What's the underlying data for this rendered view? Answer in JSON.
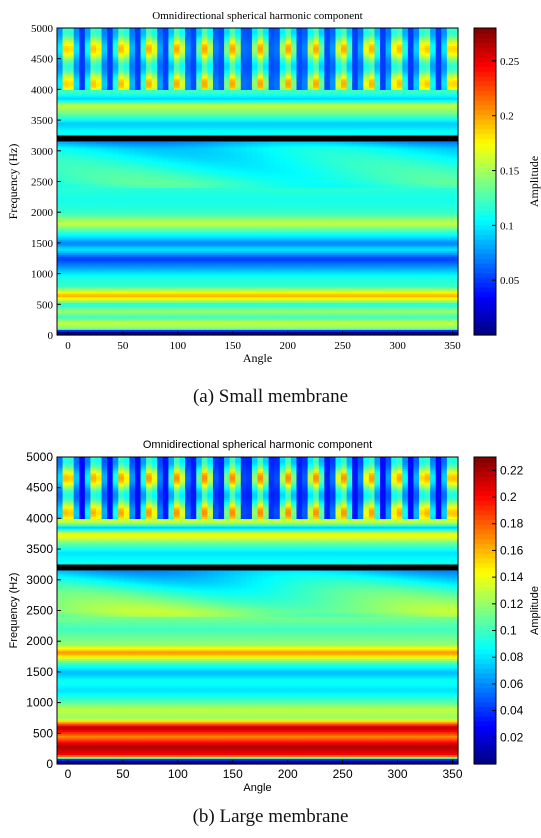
{
  "captions": [
    "(a) Small membrane",
    "(b) Large membrane"
  ],
  "chart_data": [
    {
      "type": "heatmap",
      "title": "Omnidirectional spherical harmonic component",
      "xlabel": "Angle",
      "ylabel": "Frequency (Hz)",
      "colorbar_label": "Amplitude",
      "colormap": "jet",
      "xlim": [
        -10,
        355
      ],
      "ylim": [
        0,
        5000
      ],
      "xticks": [
        0,
        50,
        100,
        150,
        200,
        250,
        300,
        350
      ],
      "yticks": [
        0,
        500,
        1000,
        1500,
        2000,
        2500,
        3000,
        3500,
        4000,
        4500,
        5000
      ],
      "clim": [
        0,
        0.28
      ],
      "cticks": [
        0.05,
        0.1,
        0.15,
        0.2,
        0.25
      ],
      "cticklabels": [
        "0.05",
        "0.1",
        "0.15",
        "0.2",
        "0.25"
      ],
      "bands": [
        {
          "f": 0,
          "v": 0.0
        },
        {
          "f": 60,
          "v": 0.0
        },
        {
          "f": 110,
          "v": 0.14
        },
        {
          "f": 200,
          "v": 0.16
        },
        {
          "f": 300,
          "v": 0.12
        },
        {
          "f": 400,
          "v": 0.15
        },
        {
          "f": 500,
          "v": 0.11
        },
        {
          "f": 650,
          "v": 0.2
        },
        {
          "f": 800,
          "v": 0.12
        },
        {
          "f": 950,
          "v": 0.11
        },
        {
          "f": 1100,
          "v": 0.08
        },
        {
          "f": 1250,
          "v": 0.05
        },
        {
          "f": 1400,
          "v": 0.1
        },
        {
          "f": 1500,
          "v": 0.07
        },
        {
          "f": 1650,
          "v": 0.11
        },
        {
          "f": 1820,
          "v": 0.16
        },
        {
          "f": 2000,
          "v": 0.12
        },
        {
          "f": 2200,
          "v": 0.11
        },
        {
          "f": 2500,
          "v": 0.12
        },
        {
          "f": 2800,
          "v": 0.11
        },
        {
          "f": 3050,
          "v": 0.1
        },
        {
          "f": 3150,
          "v": 0.08
        },
        {
          "f": 3300,
          "v": 0.11
        },
        {
          "f": 3450,
          "v": 0.09
        },
        {
          "f": 3600,
          "v": 0.13
        },
        {
          "f": 3750,
          "v": 0.16
        },
        {
          "f": 3850,
          "v": 0.09
        },
        {
          "f": 3950,
          "v": 0.12
        },
        {
          "f": 5000,
          "v": 0.12
        }
      ],
      "black_lines_hz": [
        3200
      ],
      "stripes_above_hz": 4000,
      "stripe_low": 0.05,
      "stripe_high": 0.2
    },
    {
      "type": "heatmap",
      "title": "Omnidirectional spherical harmonic component",
      "xlabel": "Angle",
      "ylabel": "Frequency (Hz)",
      "colorbar_label": "Amplitude",
      "colormap": "jet",
      "xlim": [
        -10,
        355
      ],
      "ylim": [
        0,
        5000
      ],
      "xticks": [
        0,
        50,
        100,
        150,
        200,
        250,
        300,
        350
      ],
      "yticks": [
        0,
        500,
        1000,
        1500,
        2000,
        2500,
        3000,
        3500,
        4000,
        4500,
        5000
      ],
      "clim": [
        0,
        0.23
      ],
      "cticks": [
        0.02,
        0.04,
        0.06,
        0.08,
        0.1,
        0.12,
        0.14,
        0.16,
        0.18,
        0.2,
        0.22
      ],
      "cticklabels": [
        "0.02",
        "0.04",
        "0.06",
        "0.08",
        "0.1",
        "0.12",
        "0.14",
        "0.16",
        "0.18",
        "0.2",
        "0.22"
      ],
      "bands": [
        {
          "f": 0,
          "v": 0.0
        },
        {
          "f": 60,
          "v": 0.0
        },
        {
          "f": 150,
          "v": 0.2
        },
        {
          "f": 300,
          "v": 0.22
        },
        {
          "f": 450,
          "v": 0.17
        },
        {
          "f": 600,
          "v": 0.22
        },
        {
          "f": 750,
          "v": 0.12
        },
        {
          "f": 900,
          "v": 0.13
        },
        {
          "f": 1050,
          "v": 0.1
        },
        {
          "f": 1200,
          "v": 0.08
        },
        {
          "f": 1350,
          "v": 0.09
        },
        {
          "f": 1500,
          "v": 0.07
        },
        {
          "f": 1650,
          "v": 0.1
        },
        {
          "f": 1820,
          "v": 0.17
        },
        {
          "f": 1950,
          "v": 0.12
        },
        {
          "f": 2200,
          "v": 0.1
        },
        {
          "f": 2500,
          "v": 0.12
        },
        {
          "f": 2800,
          "v": 0.1
        },
        {
          "f": 3050,
          "v": 0.08
        },
        {
          "f": 3150,
          "v": 0.07
        },
        {
          "f": 3300,
          "v": 0.09
        },
        {
          "f": 3450,
          "v": 0.08
        },
        {
          "f": 3600,
          "v": 0.11
        },
        {
          "f": 3750,
          "v": 0.15
        },
        {
          "f": 3850,
          "v": 0.07
        },
        {
          "f": 3950,
          "v": 0.13
        },
        {
          "f": 5000,
          "v": 0.1
        }
      ],
      "black_lines_hz": [
        3200
      ],
      "stripes_above_hz": 4000,
      "stripe_low": 0.03,
      "stripe_high": 0.17
    }
  ]
}
